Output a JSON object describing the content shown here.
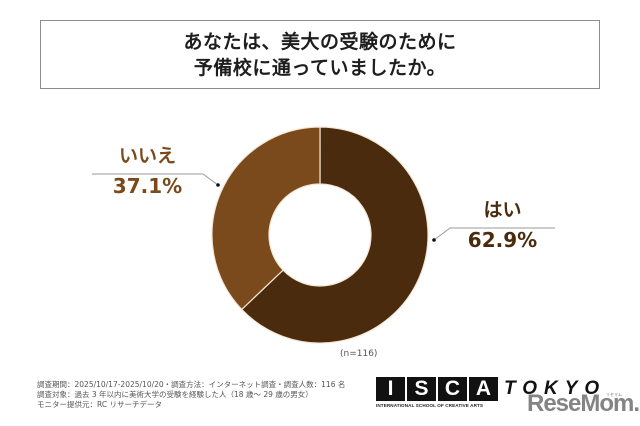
{
  "title": {
    "line1": "あなたは、美大の受験のために",
    "line2": "予備校に通っていましたか。"
  },
  "chart_data": {
    "type": "pie",
    "subtype": "donut",
    "title": "あなたは、美大の受験のために予備校に通っていましたか。",
    "categories": [
      "はい",
      "いいえ"
    ],
    "values": [
      62.9,
      37.1
    ],
    "unit": "%",
    "colors": [
      "#4b2b0e",
      "#7a4a1c"
    ],
    "start_angle": "12 o'clock, clockwise",
    "sample_note": "(n=116)",
    "legend": "direct labels with leader lines"
  },
  "labels": {
    "yes": {
      "name": "はい",
      "pct": "62.9%"
    },
    "no": {
      "name": "いいえ",
      "pct": "37.1%"
    }
  },
  "sample_note": "(n=116)",
  "footer": {
    "line1": "調査期間：2025/10/17-2025/10/20・調査方法：インターネット調査・調査人数：116 名",
    "line2": "調査対象：過去 3 年以内に美術大学の受験を経験した人（18 歳〜 29 歳の男女）",
    "line3": "モニター提供元：RC リサーチデータ"
  },
  "logo": {
    "letters": [
      "I",
      "S",
      "C",
      "A"
    ],
    "subtitle": "INTERNATIONAL SCHOOL OF CREATIVE ARTS",
    "city": "TOKYO"
  },
  "watermark": {
    "text": "ReseMom.",
    "kana": "リセマム"
  }
}
